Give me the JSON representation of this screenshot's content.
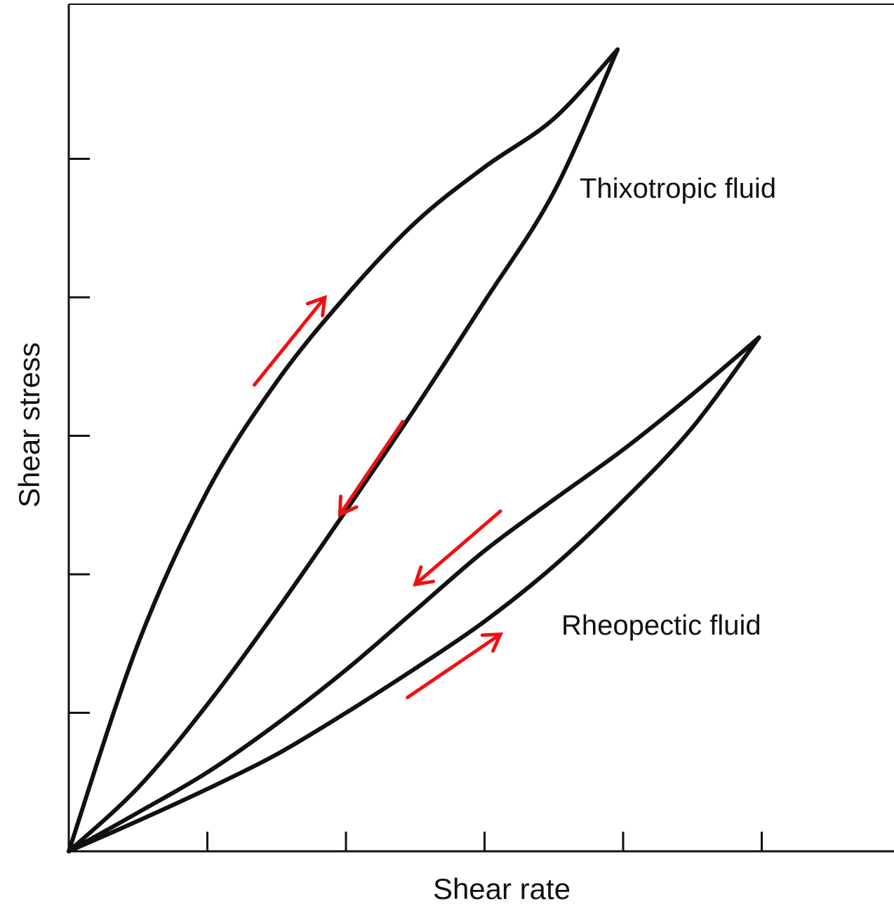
{
  "chart_data": {
    "type": "line",
    "title": "",
    "xlabel": "Shear rate",
    "ylabel": "Shear stress",
    "xlim": [
      0,
      6
    ],
    "ylim": [
      0,
      6
    ],
    "x_ticks": [
      1,
      2,
      3,
      4,
      5
    ],
    "y_ticks": [
      1,
      2,
      3,
      4,
      5
    ],
    "grid": false,
    "series": [
      {
        "name": "Thixotropic fluid",
        "loop": "up",
        "direction": "increasing",
        "x": [
          0,
          0.5,
          1,
          1.5,
          2,
          2.5,
          3,
          3.5,
          3.96
        ],
        "y": [
          0,
          1.5,
          2.6,
          3.39,
          4.01,
          4.54,
          4.94,
          5.29,
          5.79
        ]
      },
      {
        "name": "Thixotropic fluid",
        "loop": "down",
        "direction": "decreasing",
        "x": [
          3.96,
          3.5,
          3,
          2.5,
          2,
          1.5,
          1,
          0.5,
          0
        ],
        "y": [
          5.79,
          4.76,
          3.97,
          3.2,
          2.46,
          1.74,
          1.06,
          0.46,
          0
        ]
      },
      {
        "name": "Rheopectic fluid",
        "loop": "down",
        "direction": "decreasing",
        "x": [
          4.98,
          4.5,
          4,
          3.5,
          3,
          2.5,
          2,
          1.5,
          1,
          0.5,
          0
        ],
        "y": [
          3.71,
          3.3,
          2.9,
          2.54,
          2.17,
          1.74,
          1.31,
          0.92,
          0.57,
          0.28,
          0
        ]
      },
      {
        "name": "Rheopectic fluid",
        "loop": "up",
        "direction": "increasing",
        "x": [
          0,
          0.5,
          1,
          1.5,
          2,
          2.5,
          3,
          3.5,
          4,
          4.5,
          4.98
        ],
        "y": [
          0,
          0.22,
          0.45,
          0.7,
          1.0,
          1.32,
          1.66,
          2.06,
          2.53,
          3.06,
          3.71
        ]
      }
    ],
    "annotations": [
      "Thixotropic fluid",
      "Rheopectic fluid"
    ],
    "arrows": [
      {
        "series": "Thixotropic fluid",
        "loop": "up",
        "direction": "up-right",
        "color": "#ee1111"
      },
      {
        "series": "Thixotropic fluid",
        "loop": "down",
        "direction": "down-left",
        "color": "#ee1111"
      },
      {
        "series": "Rheopectic fluid",
        "loop": "down",
        "direction": "down-left",
        "color": "#ee1111"
      },
      {
        "series": "Rheopectic fluid",
        "loop": "up",
        "direction": "up-right",
        "color": "#ee1111"
      }
    ],
    "colors": {
      "curve": "#111111",
      "axis": "#111111",
      "arrow": "#ee1111"
    }
  }
}
